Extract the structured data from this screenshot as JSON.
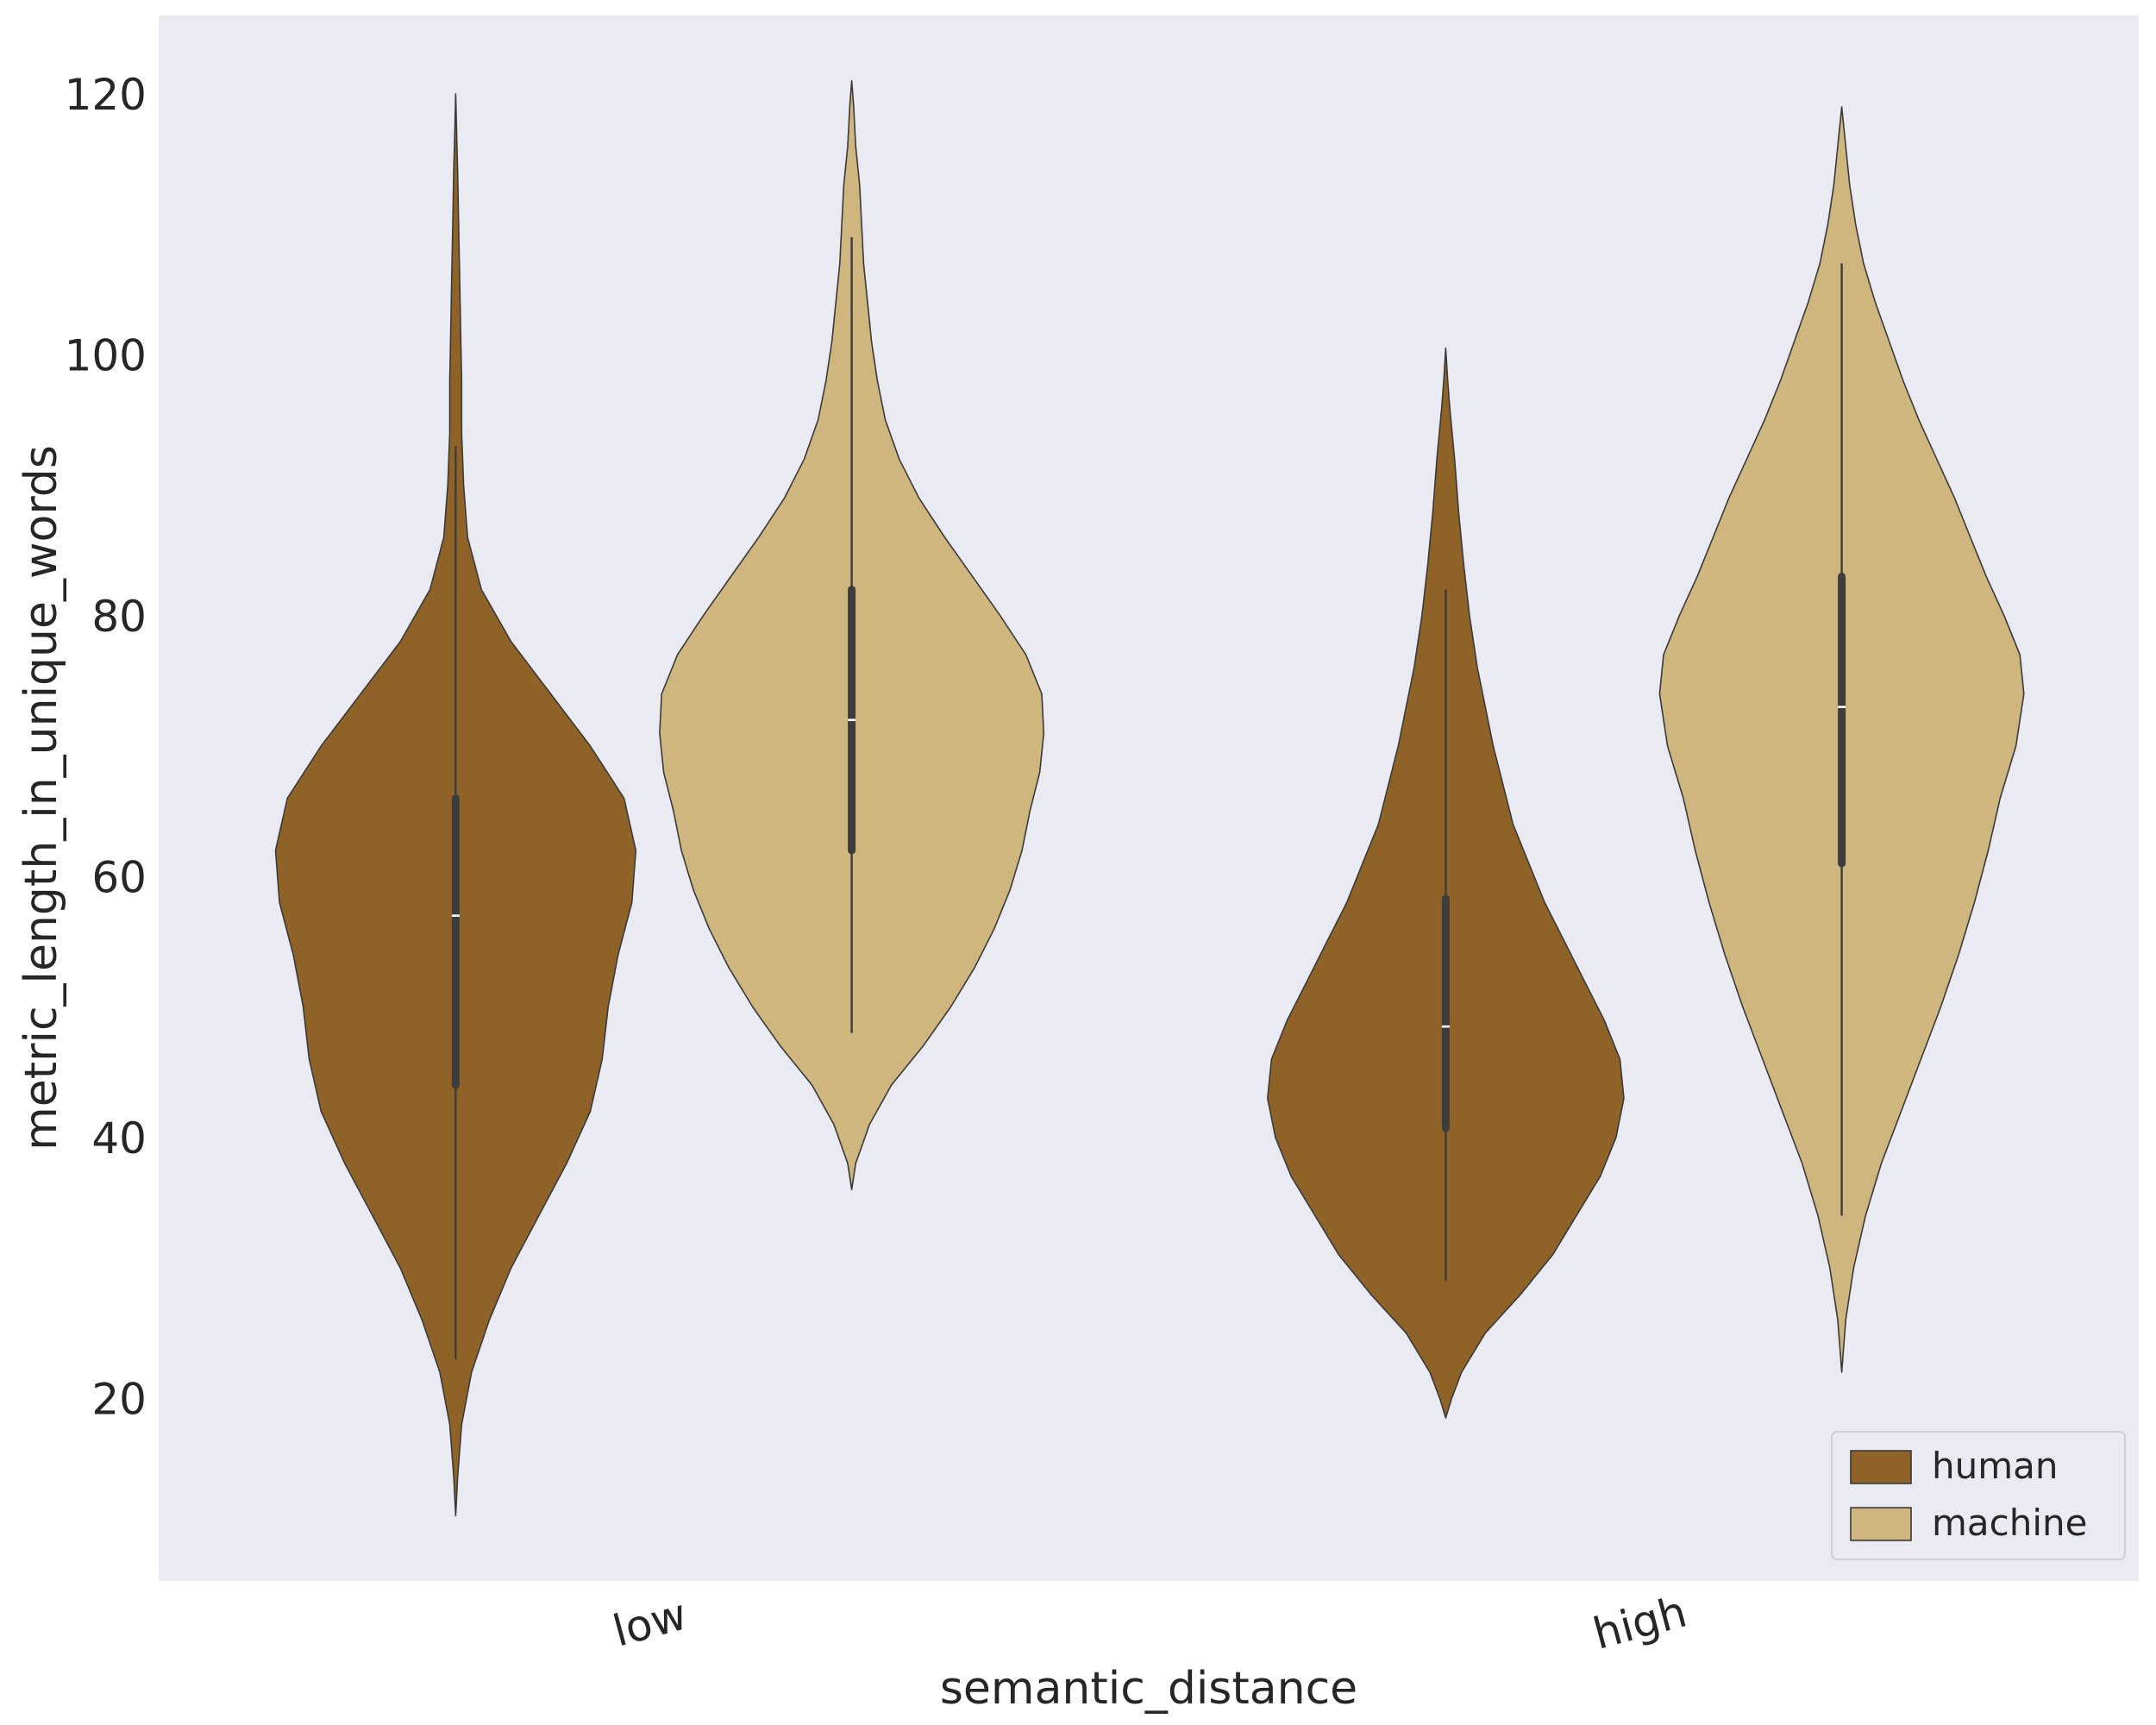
{
  "chart_data": {
    "type": "violin",
    "xlabel": "semantic_distance",
    "ylabel": "metric_length_in_unique_words",
    "categories": [
      "low",
      "high"
    ],
    "ylim": [
      6,
      126
    ],
    "yticks": [
      20,
      40,
      60,
      80,
      100,
      120
    ],
    "grid": false,
    "legend_position": "lower-right",
    "series": [
      {
        "name": "human",
        "color": "#8f6228",
        "violins": [
          {
            "category": "low",
            "min": 11,
            "max": 120,
            "whisker_low": 23,
            "whisker_high": 93,
            "q1": 44,
            "median": 57,
            "q3": 66,
            "density": [
              [
                11,
                0
              ],
              [
                14,
                0.01
              ],
              [
                18,
                0.03
              ],
              [
                22,
                0.08
              ],
              [
                26,
                0.17
              ],
              [
                30,
                0.28
              ],
              [
                34,
                0.42
              ],
              [
                38,
                0.56
              ],
              [
                42,
                0.68
              ],
              [
                46,
                0.74
              ],
              [
                50,
                0.77
              ],
              [
                54,
                0.82
              ],
              [
                58,
                0.89
              ],
              [
                62,
                0.91
              ],
              [
                66,
                0.85
              ],
              [
                70,
                0.68
              ],
              [
                74,
                0.48
              ],
              [
                78,
                0.28
              ],
              [
                82,
                0.13
              ],
              [
                86,
                0.06
              ],
              [
                90,
                0.04
              ],
              [
                94,
                0.03
              ],
              [
                98,
                0.03
              ],
              [
                102,
                0.025
              ],
              [
                106,
                0.02
              ],
              [
                110,
                0.015
              ],
              [
                114,
                0.01
              ],
              [
                117,
                0.005
              ],
              [
                120,
                0
              ]
            ]
          },
          {
            "category": "high",
            "min": 18.5,
            "max": 100.5,
            "whisker_low": 29,
            "whisker_high": 82,
            "q1": 40.7,
            "median": 48.5,
            "q3": 58.3,
            "density": [
              [
                18.5,
                0
              ],
              [
                20,
                0.03
              ],
              [
                22,
                0.08
              ],
              [
                25,
                0.2
              ],
              [
                28,
                0.38
              ],
              [
                31,
                0.54
              ],
              [
                34,
                0.66
              ],
              [
                37,
                0.78
              ],
              [
                40,
                0.86
              ],
              [
                43,
                0.9
              ],
              [
                46,
                0.88
              ],
              [
                49,
                0.8
              ],
              [
                52,
                0.7
              ],
              [
                55,
                0.6
              ],
              [
                58,
                0.5
              ],
              [
                61,
                0.42
              ],
              [
                64,
                0.34
              ],
              [
                67,
                0.29
              ],
              [
                70,
                0.24
              ],
              [
                73,
                0.2
              ],
              [
                76,
                0.16
              ],
              [
                80,
                0.12
              ],
              [
                84,
                0.09
              ],
              [
                88,
                0.065
              ],
              [
                92,
                0.045
              ],
              [
                96,
                0.02
              ],
              [
                98,
                0.01
              ],
              [
                100.5,
                0
              ]
            ]
          }
        ]
      },
      {
        "name": "machine",
        "color": "#cfb57e",
        "violins": [
          {
            "category": "low",
            "min": 36,
            "max": 121,
            "whisker_low": 48,
            "whisker_high": 109,
            "q1": 62,
            "median": 72,
            "q3": 82,
            "density": [
              [
                36,
                0
              ],
              [
                38,
                0.02
              ],
              [
                41,
                0.09
              ],
              [
                44,
                0.2
              ],
              [
                47,
                0.36
              ],
              [
                50,
                0.5
              ],
              [
                53,
                0.62
              ],
              [
                56,
                0.72
              ],
              [
                59,
                0.8
              ],
              [
                62,
                0.86
              ],
              [
                65,
                0.9
              ],
              [
                68,
                0.95
              ],
              [
                71,
                0.97
              ],
              [
                74,
                0.96
              ],
              [
                77,
                0.88
              ],
              [
                80,
                0.75
              ],
              [
                83,
                0.61
              ],
              [
                86,
                0.47
              ],
              [
                89,
                0.34
              ],
              [
                92,
                0.24
              ],
              [
                95,
                0.17
              ],
              [
                98,
                0.13
              ],
              [
                101,
                0.1
              ],
              [
                104,
                0.08
              ],
              [
                107,
                0.06
              ],
              [
                110,
                0.05
              ],
              [
                113,
                0.04
              ],
              [
                116,
                0.02
              ],
              [
                119,
                0.01
              ],
              [
                121,
                0
              ]
            ]
          },
          {
            "category": "high",
            "min": 22,
            "max": 119,
            "whisker_low": 34,
            "whisker_high": 107,
            "q1": 61,
            "median": 73,
            "q3": 83,
            "density": [
              [
                22,
                0
              ],
              [
                26,
                0.02
              ],
              [
                30,
                0.06
              ],
              [
                34,
                0.12
              ],
              [
                38,
                0.2
              ],
              [
                42,
                0.3
              ],
              [
                46,
                0.4
              ],
              [
                50,
                0.5
              ],
              [
                54,
                0.59
              ],
              [
                58,
                0.67
              ],
              [
                62,
                0.74
              ],
              [
                66,
                0.8
              ],
              [
                70,
                0.88
              ],
              [
                74,
                0.92
              ],
              [
                77,
                0.9
              ],
              [
                80,
                0.82
              ],
              [
                83,
                0.73
              ],
              [
                86,
                0.65
              ],
              [
                89,
                0.57
              ],
              [
                92,
                0.48
              ],
              [
                95,
                0.39
              ],
              [
                98,
                0.31
              ],
              [
                101,
                0.24
              ],
              [
                104,
                0.17
              ],
              [
                107,
                0.11
              ],
              [
                110,
                0.07
              ],
              [
                113,
                0.04
              ],
              [
                116,
                0.02
              ],
              [
                119,
                0
              ]
            ]
          }
        ]
      }
    ]
  }
}
